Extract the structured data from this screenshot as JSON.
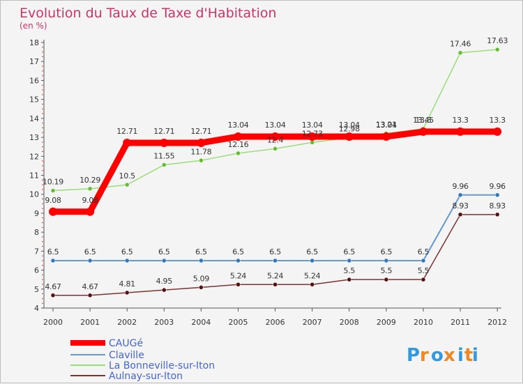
{
  "chart_data": {
    "type": "line",
    "title": "Evolution du Taux de Taxe d'Habitation",
    "subtitle": "(en %)",
    "xlabel": "",
    "ylabel": "",
    "x": [
      "2000",
      "2001",
      "2002",
      "2003",
      "2004",
      "2005",
      "2006",
      "2007",
      "2008",
      "2009",
      "2010",
      "2011",
      "2012"
    ],
    "ylim": [
      4,
      18
    ],
    "yticks": [
      "4",
      "5",
      "6",
      "7",
      "8",
      "9",
      "10",
      "11",
      "12",
      "13",
      "14",
      "15",
      "16",
      "17",
      "18"
    ],
    "grid": false,
    "legend_position": "bottom-left",
    "series": [
      {
        "name": "CAUGé",
        "color": "#ff0000",
        "marker": "#ff0000",
        "values": [
          9.08,
          9.08,
          12.71,
          12.71,
          12.71,
          13.04,
          13.04,
          13.04,
          13.04,
          13.04,
          13.3,
          13.3,
          13.3
        ],
        "labels": [
          "9.08",
          "9.08",
          "12.71",
          "12.71",
          "12.71",
          "13.04",
          "13.04",
          "13.04",
          "13.04",
          "13.04",
          "13.3",
          "13.3",
          "13.3"
        ]
      },
      {
        "name": "Claville",
        "color": "#6699cc",
        "marker": "#3377bb",
        "values": [
          6.5,
          6.5,
          6.5,
          6.5,
          6.5,
          6.5,
          6.5,
          6.5,
          6.5,
          6.5,
          6.5,
          9.96,
          9.96
        ],
        "labels": [
          "6.5",
          "6.5",
          "6.5",
          "6.5",
          "6.5",
          "6.5",
          "6.5",
          "6.5",
          "6.5",
          "6.5",
          "6.5",
          "9.96",
          "9.96"
        ]
      },
      {
        "name": "La Bonneville-sur-Iton",
        "color": "#99dd77",
        "marker": "#66bb33",
        "values": [
          10.19,
          10.29,
          10.5,
          11.55,
          11.78,
          12.16,
          12.4,
          12.73,
          12.98,
          13.21,
          13.45,
          17.46,
          17.63
        ],
        "labels": [
          "10.19",
          "10.29",
          "10.5",
          "11.55",
          "11.78",
          "12.16",
          "12.4",
          "12.73",
          "12.98",
          "13.21",
          "13.45",
          "17.46",
          "17.63"
        ]
      },
      {
        "name": "Aulnay-sur-Iton",
        "color": "#7a3333",
        "marker": "#551111",
        "values": [
          4.67,
          4.67,
          4.81,
          4.95,
          5.09,
          5.24,
          5.24,
          5.24,
          5.5,
          5.5,
          5.5,
          8.93,
          8.93
        ],
        "labels": [
          "4.67",
          "4.67",
          "4.81",
          "4.95",
          "5.09",
          "5.24",
          "5.24",
          "5.24",
          "5.5",
          "5.5",
          "5.5",
          "8.93",
          "8.93"
        ]
      }
    ]
  },
  "colors": {
    "title": "#cc3366",
    "axis": "#555555",
    "label": "#333333",
    "legend_text": "#4466cc"
  },
  "logo": {
    "letters": [
      "P",
      "r",
      "o",
      "x",
      "i",
      "t",
      "i"
    ],
    "letter_colors": [
      "#3399dd",
      "#ee8822",
      "#3399dd",
      "#ee8822",
      "#3399dd",
      "#ee8822",
      "#3399dd"
    ]
  }
}
